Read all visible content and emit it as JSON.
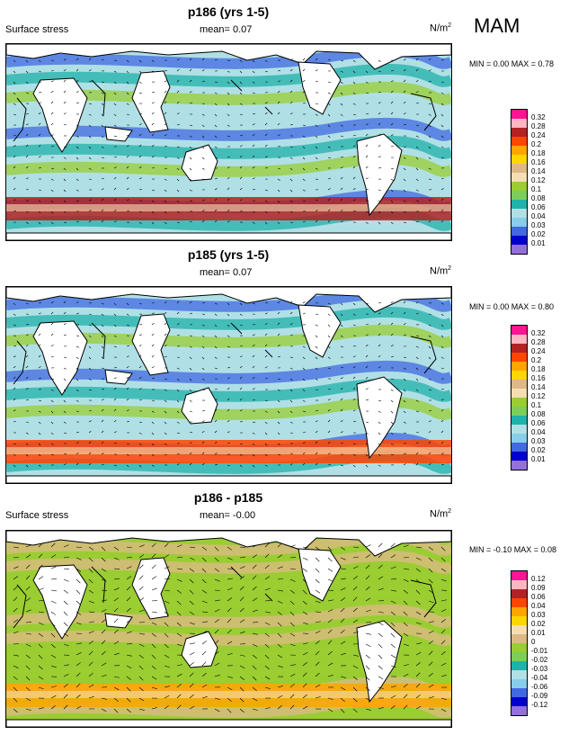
{
  "season": "MAM",
  "panels": [
    {
      "title": "p186 (yrs 1-5)",
      "left_label": "Surface stress",
      "mean_label": "mean=  0.07",
      "unit": "N/m",
      "unit_sup": "2",
      "minmax": "MIN =  0.00 MAX =  0.78",
      "colorbar": {
        "labels": [
          "0.32",
          "0.28",
          "0.24",
          "0.2",
          "0.18",
          "0.16",
          "0.14",
          "0.12",
          "0.1",
          "0.08",
          "0.06",
          "0.04",
          "0.03",
          "0.02",
          "0.01"
        ],
        "colors": [
          "#ff1493",
          "#ffb6c1",
          "#b22222",
          "#ff4500",
          "#ffa500",
          "#ffd700",
          "#deb887",
          "#f5deb3",
          "#9acd32",
          "#7cce5a",
          "#20b2aa",
          "#b0e0e6",
          "#87ceeb",
          "#4169e1",
          "#0000cd",
          "#9370db"
        ]
      }
    },
    {
      "title": "p185 (yrs 1-5)",
      "left_label": "",
      "mean_label": "mean=  0.07",
      "unit": "N/m",
      "unit_sup": "2",
      "minmax": "MIN =  0.00 MAX =  0.80",
      "colorbar": {
        "labels": [
          "0.32",
          "0.28",
          "0.24",
          "0.2",
          "0.18",
          "0.16",
          "0.14",
          "0.12",
          "0.1",
          "0.08",
          "0.06",
          "0.04",
          "0.03",
          "0.02",
          "0.01"
        ],
        "colors": [
          "#ff1493",
          "#ffb6c1",
          "#b22222",
          "#ff4500",
          "#ffa500",
          "#ffd700",
          "#deb887",
          "#f5deb3",
          "#9acd32",
          "#7cce5a",
          "#20b2aa",
          "#b0e0e6",
          "#87ceeb",
          "#4169e1",
          "#0000cd",
          "#9370db"
        ]
      }
    },
    {
      "title": "p186 - p185",
      "left_label": "Surface stress",
      "mean_label": "mean=  -0.00",
      "unit": "N/m",
      "unit_sup": "2",
      "minmax": "MIN = -0.10 MAX =  0.08",
      "colorbar": {
        "labels": [
          "0.12",
          "0.09",
          "0.06",
          "0.04",
          "0.03",
          "0.02",
          "0.01",
          "0",
          "-0.01",
          "-0.02",
          "-0.03",
          "-0.04",
          "-0.06",
          "-0.09",
          "-0.12"
        ],
        "colors": [
          "#ff1493",
          "#ffb6c1",
          "#b22222",
          "#ff4500",
          "#ffa500",
          "#ffd700",
          "#f5deb3",
          "#deb887",
          "#9acd32",
          "#7cce5a",
          "#20b2aa",
          "#b0e0e6",
          "#87ceeb",
          "#4169e1",
          "#0000cd",
          "#9370db"
        ]
      }
    }
  ],
  "chart_data": [
    {
      "type": "heatmap",
      "title": "p186 (yrs 1-5)",
      "variable": "Surface stress",
      "mean": 0.07,
      "min": 0.0,
      "max": 0.78,
      "levels": [
        0.01,
        0.02,
        0.03,
        0.04,
        0.06,
        0.08,
        0.1,
        0.12,
        0.14,
        0.16,
        0.18,
        0.2,
        0.24,
        0.28,
        0.32
      ]
    },
    {
      "type": "heatmap",
      "title": "p185 (yrs 1-5)",
      "variable": "Surface stress",
      "mean": 0.07,
      "min": 0.0,
      "max": 0.8,
      "levels": [
        0.01,
        0.02,
        0.03,
        0.04,
        0.06,
        0.08,
        0.1,
        0.12,
        0.14,
        0.16,
        0.18,
        0.2,
        0.24,
        0.28,
        0.32
      ]
    },
    {
      "type": "heatmap",
      "title": "p186 - p185",
      "variable": "Surface stress",
      "mean": -0.0,
      "min": -0.1,
      "max": 0.08,
      "levels": [
        -0.12,
        -0.09,
        -0.06,
        -0.04,
        -0.03,
        -0.02,
        -0.01,
        0,
        0.01,
        0.02,
        0.03,
        0.04,
        0.06,
        0.09,
        0.12
      ]
    }
  ]
}
